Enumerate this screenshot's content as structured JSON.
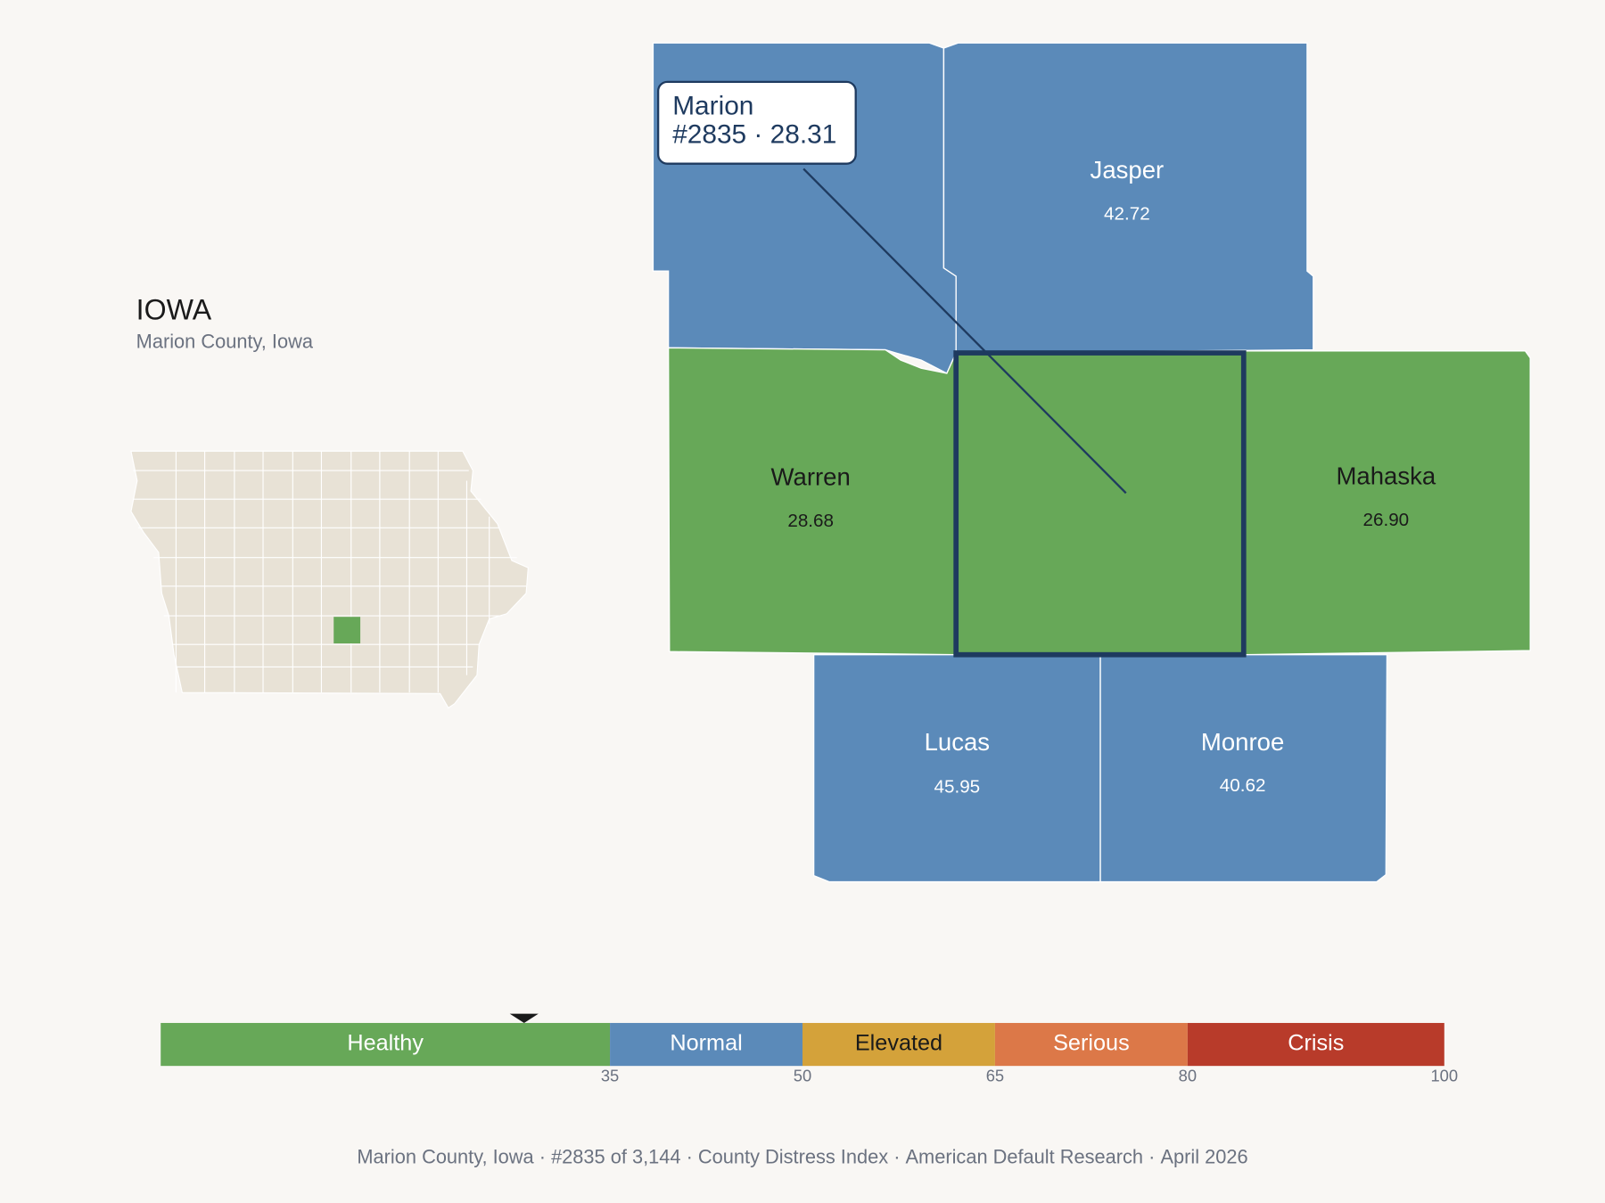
{
  "header": {
    "title": "IOWA",
    "subtitle": "Marion County, Iowa"
  },
  "tooltip": {
    "line1": "Marion",
    "line2": "#2835 · 28.31"
  },
  "counties": [
    {
      "name": "Jasper",
      "value": "42.72"
    },
    {
      "name": "Warren",
      "value": "28.68"
    },
    {
      "name": "Mahaska",
      "value": "26.90"
    },
    {
      "name": "Lucas",
      "value": "45.95"
    },
    {
      "name": "Monroe",
      "value": "40.62"
    }
  ],
  "scale": {
    "min": 0,
    "marker": 28.31,
    "ticks": [
      35,
      50,
      65,
      80,
      100
    ],
    "bands": [
      {
        "label": "Healthy",
        "color": "#67a858"
      },
      {
        "label": "Normal",
        "color": "#5b8ab9"
      },
      {
        "label": "Elevated",
        "color": "#d4a23a"
      },
      {
        "label": "Serious",
        "color": "#dc7848"
      },
      {
        "label": "Crisis",
        "color": "#b83b2a"
      }
    ]
  },
  "footer": {
    "separator": "·",
    "items": [
      "Marion County, Iowa",
      "#2835 of 3,144",
      "County Distress Index",
      "American Default Research",
      "April 2026"
    ]
  }
}
